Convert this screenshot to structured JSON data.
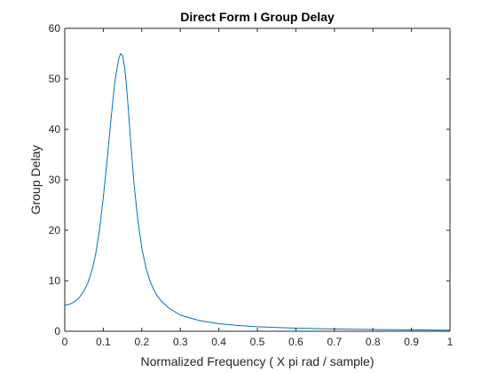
{
  "chart_data": {
    "type": "line",
    "title": "Direct Form I Group Delay",
    "xlabel": "Normalized Frequency ( X pi rad / sample)",
    "ylabel": "Group Delay",
    "xlim": [
      0,
      1
    ],
    "ylim": [
      0,
      60
    ],
    "xticks": [
      "0",
      "0.1",
      "0.2",
      "0.3",
      "0.4",
      "0.5",
      "0.6",
      "0.7",
      "0.8",
      "0.9",
      "1"
    ],
    "yticks": [
      "0",
      "10",
      "20",
      "30",
      "40",
      "50",
      "60"
    ],
    "grid": false,
    "line_color": "#0072BD",
    "series": [
      {
        "x": [
          0,
          0.01,
          0.02,
          0.03,
          0.04,
          0.05,
          0.06,
          0.07,
          0.08,
          0.09,
          0.1,
          0.11,
          0.12,
          0.13,
          0.14,
          0.145,
          0.15,
          0.155,
          0.16,
          0.165,
          0.17,
          0.18,
          0.19,
          0.2,
          0.21,
          0.22,
          0.23,
          0.24,
          0.25,
          0.27,
          0.3,
          0.35,
          0.4,
          0.45,
          0.5,
          0.55,
          0.6,
          0.65,
          0.7,
          0.75,
          0.8,
          0.85,
          0.9,
          0.95,
          1.0
        ],
        "y": [
          5.2,
          5.3,
          5.6,
          6.1,
          6.9,
          8.0,
          9.6,
          11.9,
          15.2,
          20.0,
          26.5,
          34.0,
          42.0,
          49.5,
          54.0,
          55.0,
          54.6,
          52.5,
          48.8,
          44.0,
          38.6,
          29.0,
          21.8,
          16.5,
          12.8,
          10.2,
          8.4,
          7.0,
          6.0,
          4.6,
          3.2,
          2.1,
          1.5,
          1.15,
          0.9,
          0.75,
          0.62,
          0.52,
          0.45,
          0.4,
          0.35,
          0.31,
          0.28,
          0.25,
          0.23
        ]
      }
    ]
  }
}
